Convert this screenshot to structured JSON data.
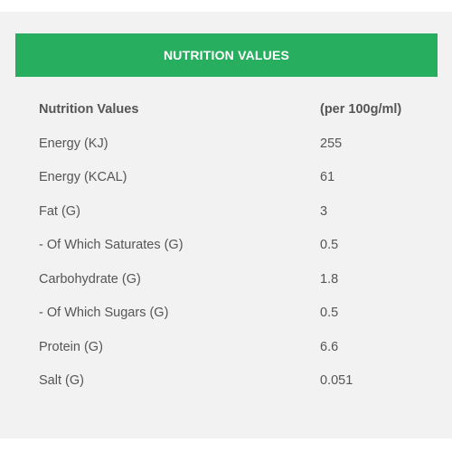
{
  "header": {
    "title": "NUTRITION VALUES"
  },
  "colors": {
    "accent": "#27ae5f",
    "panel_bg": "#f2f2f2",
    "text": "#555555"
  },
  "table": {
    "columns": [
      "Nutrition Values",
      "(per 100g/ml)"
    ],
    "rows": [
      {
        "name": "Energy (KJ)",
        "value": "255"
      },
      {
        "name": "Energy (KCAL)",
        "value": "61"
      },
      {
        "name": "Fat (G)",
        "value": "3"
      },
      {
        "name": "- Of Which Saturates (G)",
        "value": "0.5"
      },
      {
        "name": "Carbohydrate (G)",
        "value": "1.8"
      },
      {
        "name": "- Of Which Sugars (G)",
        "value": "0.5"
      },
      {
        "name": "Protein (G)",
        "value": "6.6"
      },
      {
        "name": "Salt (G)",
        "value": "0.051"
      }
    ]
  }
}
